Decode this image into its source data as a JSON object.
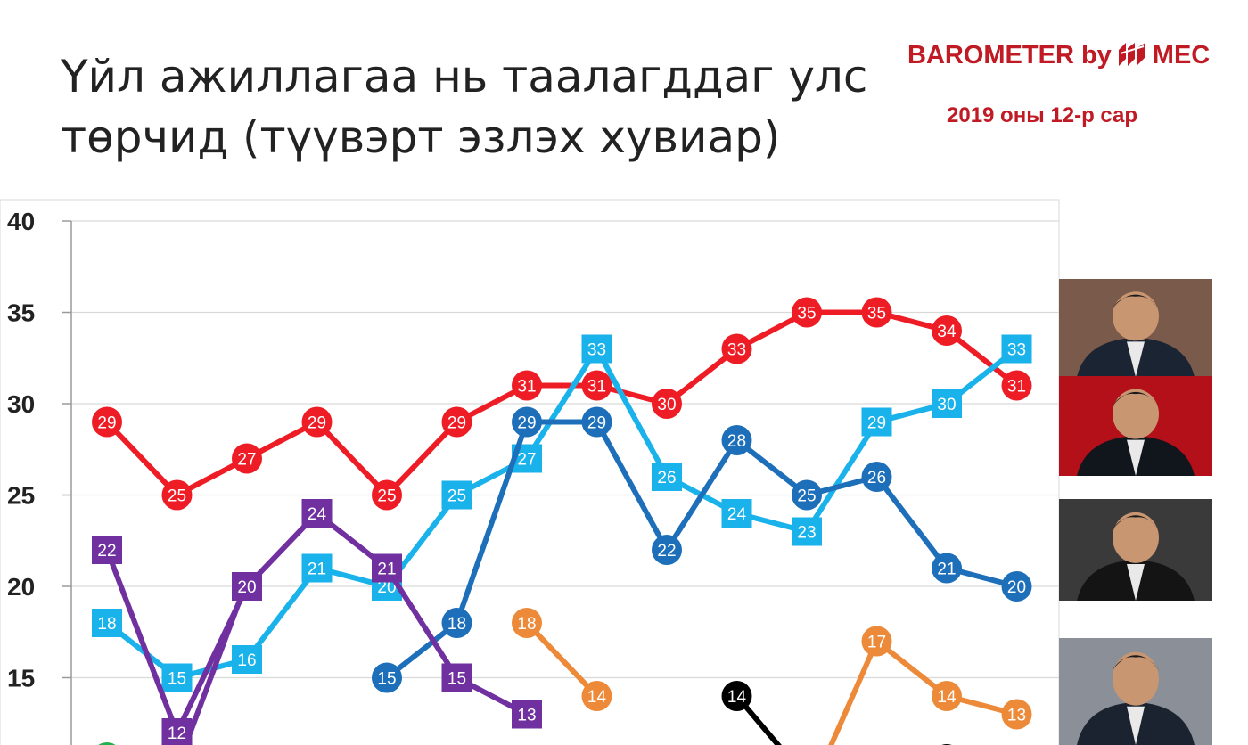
{
  "header": {
    "title_line1": "Үйл ажиллагаа нь таалагддаг улс",
    "title_line2": "төрчид (түүвэрт эзлэх хувиар)",
    "brand_text": "BAROMETER by",
    "brand_suffix": "MEC",
    "date": "2019 оны 12-р сар"
  },
  "colors": {
    "brand": "#c01b24",
    "red": "#ee1c25",
    "light_blue": "#1ab2ea",
    "dark_blue": "#1e6fba",
    "purple": "#7030a0",
    "orange": "#ed8a3a",
    "black": "#000000",
    "green": "#22b14c"
  },
  "chart_data": {
    "type": "line",
    "ylim": [
      10,
      40
    ],
    "yticks": [
      15,
      20,
      25,
      30,
      35,
      40
    ],
    "grid": true,
    "n_points": 14,
    "series": [
      {
        "color": "red",
        "marker": "circle",
        "values": [
          29,
          25,
          27,
          29,
          25,
          29,
          31,
          31,
          30,
          33,
          35,
          35,
          34,
          31
        ]
      },
      {
        "color": "light_blue",
        "marker": "square",
        "values": [
          18,
          15,
          16,
          21,
          20,
          25,
          27,
          33,
          26,
          24,
          23,
          29,
          30,
          33
        ]
      },
      {
        "color": "dark_blue",
        "marker": "circle",
        "values": [
          null,
          null,
          null,
          null,
          15,
          18,
          29,
          29,
          22,
          28,
          25,
          26,
          21,
          20
        ]
      },
      {
        "color": "purple",
        "marker": "square",
        "values": [
          22,
          12,
          20,
          24,
          21,
          15,
          13,
          null,
          null,
          null,
          null,
          null,
          null,
          null
        ]
      },
      {
        "color": "orange",
        "marker": "circle",
        "values": [
          null,
          null,
          null,
          null,
          null,
          null,
          18,
          14,
          null,
          null,
          null,
          17,
          14,
          13
        ]
      },
      {
        "color": "black",
        "marker": "circle",
        "values": [
          null,
          null,
          null,
          null,
          null,
          null,
          null,
          null,
          null,
          14,
          null,
          null,
          null,
          null
        ]
      },
      {
        "color": "green",
        "marker": "circle",
        "values": [
          null,
          null,
          null,
          null,
          null,
          null,
          null,
          null,
          null,
          null,
          null,
          null,
          null,
          null
        ]
      }
    ]
  },
  "portraits": [
    {
      "name": "portrait-1",
      "bg": "#7a5a4a",
      "suit": "#1b2433"
    },
    {
      "name": "portrait-2",
      "bg": "#b3101a",
      "suit": "#11151c"
    },
    {
      "name": "portrait-3",
      "bg": "#3a3a3a",
      "suit": "#141414"
    },
    {
      "name": "portrait-4",
      "bg": "#8a8f98",
      "suit": "#1c2330"
    }
  ]
}
